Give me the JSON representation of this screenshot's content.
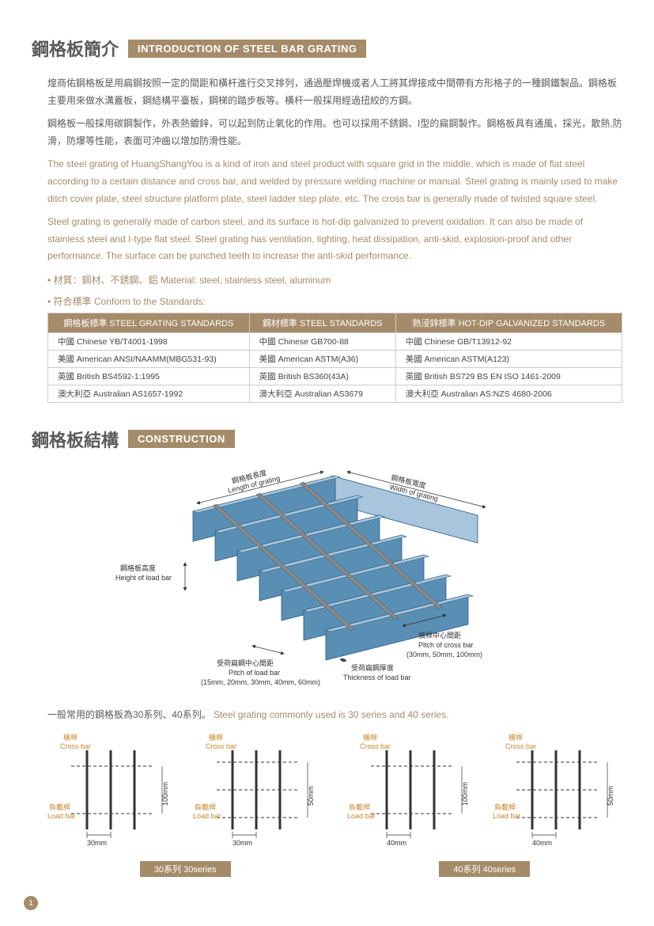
{
  "intro": {
    "title_cn": "鋼格板簡介",
    "title_en": "INTRODUCTION OF STEEL BAR GRATING",
    "para_cn1": "煌商佑鋼格板是用扁鋼按照一定的間距和橫杆進行交叉排列，通過壓焊機或者人工將其焊接成中間帶有方形格子的一種鋼鐵製品。鋼格板主要用來做水溝蓋板，鋼結構平臺板，鋼梯的踏步板等。橫杆一般採用經過扭絞的方鋼。",
    "para_cn2": "鋼格板一般採用碳鋼製作，外表熱鍍鋅，可以起到防止氧化的作用。也可以採用不銹鋼、I型的扁鋼製作。鋼格板具有通風，採光，散熱,防滑，防爆等性能，表面可沖齒以增加防滑性能。",
    "para_en1": "The steel grating of HuangShangYou is a kind of iron and steel product with square grid in the middle, which is made of flat steel according to a certain distance and cross bar, and welded by pressure welding machine or manual. Steel grating is mainly used to make ditch cover plate, steel structure platform plate, steel ladder step plate, etc. The cross bar is generally made of twisted square steel.",
    "para_en2": "Steel grating is generally made of carbon steel, and its surface is hot-dip galvanized to prevent oxidation. It can also be made of stainless steel and I-type flat steel. Steel grating has ventilation, lighting, heat dissipation, anti-skid, explosion-proof and other performance. The surface can be punched teeth to increase the anti-skid performance.",
    "bullet1": "• 材質：鋼材、不銹鋼、鋁 Material: steel, stainless steel, aluminum",
    "bullet2": "• 符合標準 Conform to the Standards:"
  },
  "standards": {
    "headers": [
      "鋼格板標準 STEEL GRATING STANDARDS",
      "鋼材標準 STEEL STANDARDS",
      "熱浸鋅標準 HOT-DIP GALVANIZED STANDARDS"
    ],
    "rows": [
      [
        "中國 Chinese  YB/T4001-1998",
        "中國 Chinese  GB700-88",
        "中國 Chinese  GB/T13912-92"
      ],
      [
        "美國 American  ANSI/NAAMM(MBG531-93)",
        "美國 American  ASTM(A36)",
        "美國 American  ASTM(A123)"
      ],
      [
        "英國 British  BS4592-1:1995",
        "英國 British  BS360(43A)",
        "英國 British  BS729 BS EN ISO 1461-2009"
      ],
      [
        "澳大利亞 Australian  AS1657-1992",
        "澳大利亞 Australian  AS3679",
        "澳大利亞 Australian  AS:NZS 4680-2006"
      ]
    ]
  },
  "construction": {
    "title_cn": "鋼格板結構",
    "title_en": "CONSTRUCTION",
    "labels": {
      "length_cn": "鋼格板長度",
      "length_en": "Length of grating",
      "width_cn": "鋼格板寬度",
      "width_en": "Width of grating",
      "height_cn": "鋼格板高度",
      "height_en": "Height of load bar",
      "cross_pitch_cn": "橫桿中心間距",
      "cross_pitch_en": "Pitch of cross bar",
      "cross_pitch_vals": "(30mm, 50mm, 100mm)",
      "load_pitch_cn": "受荷扁鋼中心間距",
      "load_pitch_en": "Pitch of load bar",
      "load_pitch_vals": "(15mm, 20mm, 30mm, 40mm, 60mm)",
      "thickness_cn": "受荷扁鋼厚度",
      "thickness_en": "Thickness of load bar"
    },
    "colors": {
      "bar_fill": "#5a8fb5",
      "bar_edge": "#2a5a7a",
      "bar_light": "#a8c5dd",
      "frame": "#888"
    }
  },
  "series": {
    "note_cn": "一般常用的鋼格板為30系列、40系列。",
    "note_en": "Steel grating commonly used is 30 series and 40 series.",
    "cross_label_cn": "橫桿",
    "cross_label_en": "Cross bar",
    "load_label_cn": "負載桿",
    "load_label_en": "Load bar",
    "items": [
      {
        "pitch": "30mm",
        "cross": "100mm"
      },
      {
        "pitch": "30mm",
        "cross": "50mm"
      },
      {
        "pitch": "40mm",
        "cross": "100mm"
      },
      {
        "pitch": "40mm",
        "cross": "50mm"
      }
    ],
    "label30": "30系列  30series",
    "label40": "40系列  40series"
  },
  "page": "1"
}
